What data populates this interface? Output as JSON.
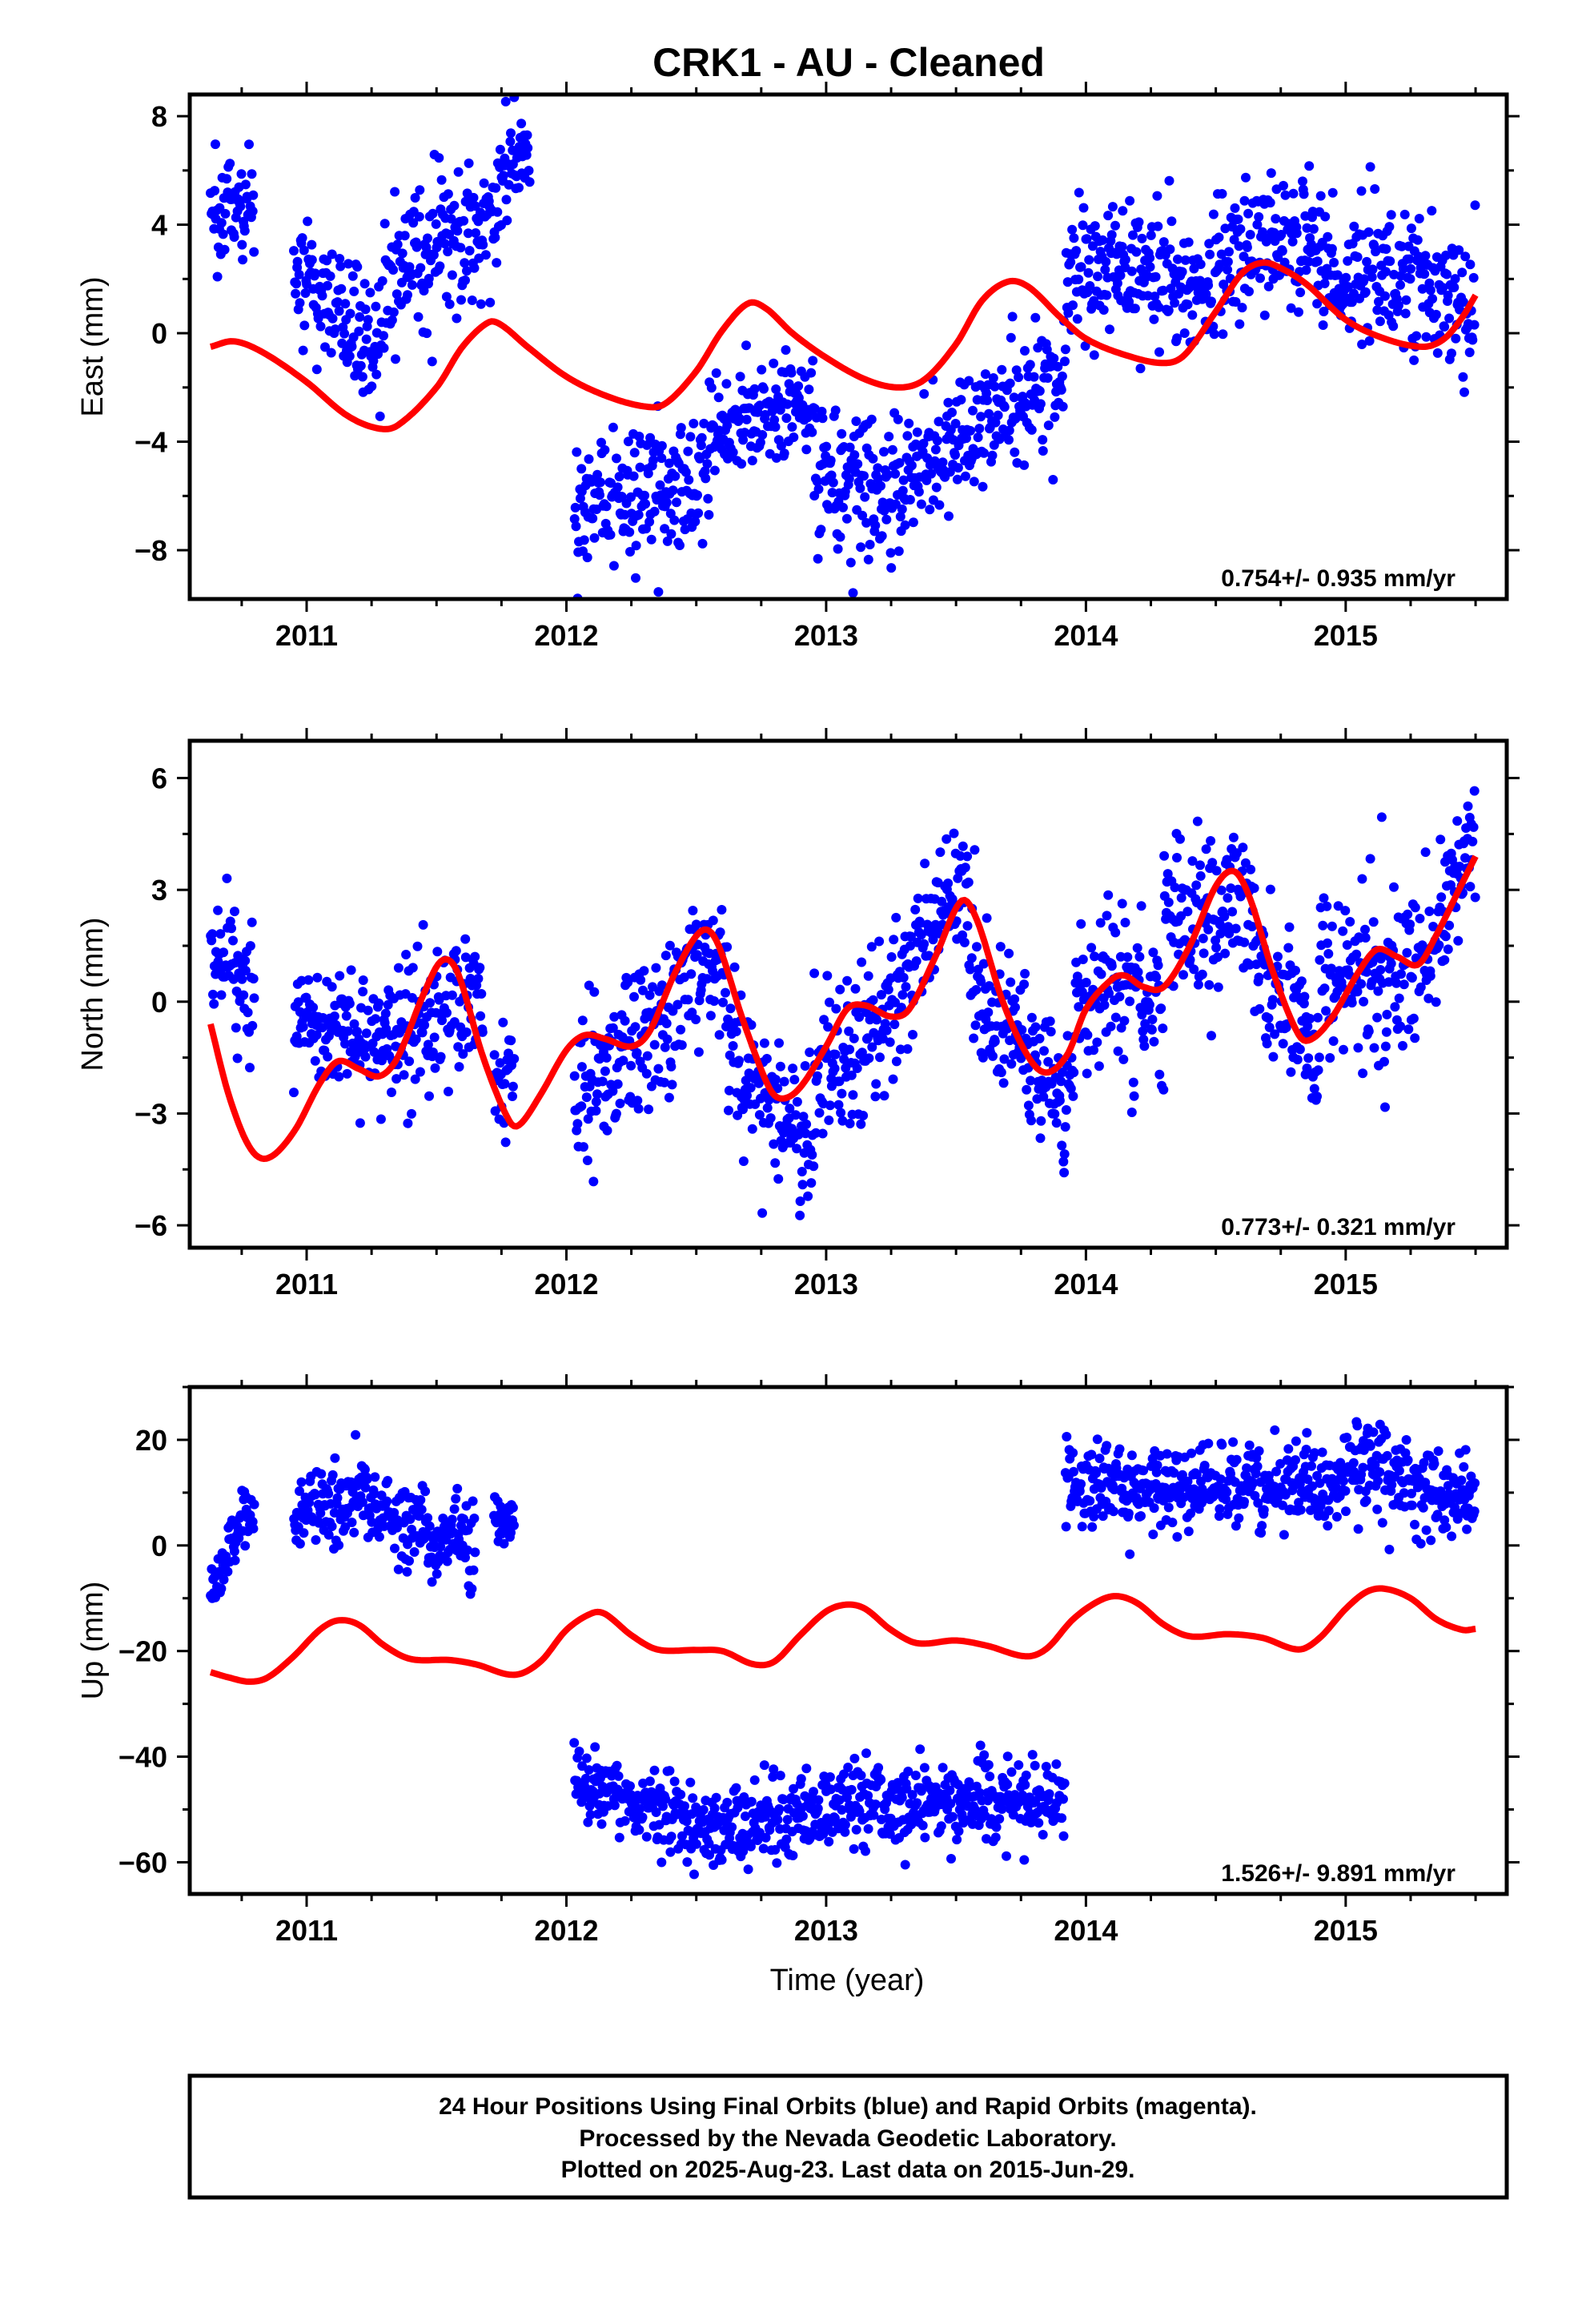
{
  "title": "CRK1  - AU - Cleaned",
  "x_label": "Time (year)",
  "footer_lines": [
    "24 Hour Positions Using Final Orbits (blue) and Rapid Orbits (magenta).",
    "Processed by the Nevada Geodetic Laboratory.",
    "Plotted on 2025-Aug-23. Last data on 2015-Jun-29."
  ],
  "colors": {
    "data_points": "#0000ff",
    "model_line": "#ff0000",
    "axes": "#000000"
  },
  "chart_data": [
    {
      "type": "scatter",
      "name": "east",
      "ylabel": "East (mm)",
      "xlim": [
        2010.55,
        2015.62
      ],
      "ylim": [
        -9.8,
        8.8
      ],
      "xticks": [
        2011,
        2012,
        2013,
        2014,
        2015
      ],
      "yticks": [
        -8,
        -4,
        0,
        4,
        8
      ],
      "rate_annotation": "0.754+/- 0.935 mm/yr",
      "segments": [
        {
          "x0": 2010.63,
          "x1": 2010.8,
          "y": [
            4.8,
            5.0
          ],
          "s": 1.0
        },
        {
          "x0": 2010.95,
          "x1": 2011.3,
          "y": [
            2.5,
            -0.6
          ],
          "s": 1.3
        },
        {
          "x0": 2011.3,
          "x1": 2011.78,
          "y": [
            1.8,
            4.8
          ],
          "s": 1.3
        },
        {
          "x0": 2011.78,
          "x1": 2011.86,
          "y": [
            6.5,
            6.5
          ],
          "s": 0.8
        },
        {
          "x0": 2012.03,
          "x1": 2012.55,
          "y": [
            -6.4,
            -5.3
          ],
          "s": 1.2
        },
        {
          "x0": 2012.55,
          "x1": 2012.95,
          "y": [
            -3.6,
            -2.3
          ],
          "s": 1.0
        },
        {
          "x0": 2012.95,
          "x1": 2013.3,
          "y": [
            -5.0,
            -6.0
          ],
          "s": 1.3
        },
        {
          "x0": 2013.3,
          "x1": 2013.92,
          "y": [
            -5.2,
            -2.0
          ],
          "s": 1.2
        },
        {
          "x0": 2013.92,
          "x1": 2014.5,
          "y": [
            2.6,
            1.6
          ],
          "s": 1.3
        },
        {
          "x0": 2014.5,
          "x1": 2014.9,
          "y": [
            2.9,
            3.6
          ],
          "s": 1.3
        },
        {
          "x0": 2014.9,
          "x1": 2015.5,
          "y": [
            2.5,
            1.2
          ],
          "s": 1.3
        }
      ],
      "model_knots": [
        [
          2010.63,
          -0.5
        ],
        [
          2010.72,
          -0.3
        ],
        [
          2010.83,
          -0.7
        ],
        [
          2011.0,
          -1.8
        ],
        [
          2011.15,
          -3.0
        ],
        [
          2011.27,
          -3.5
        ],
        [
          2011.35,
          -3.4
        ],
        [
          2011.5,
          -2.0
        ],
        [
          2011.6,
          -0.5
        ],
        [
          2011.7,
          0.4
        ],
        [
          2011.75,
          0.3
        ],
        [
          2011.85,
          -0.5
        ],
        [
          2012.0,
          -1.6
        ],
        [
          2012.15,
          -2.3
        ],
        [
          2012.3,
          -2.7
        ],
        [
          2012.38,
          -2.6
        ],
        [
          2012.5,
          -1.4
        ],
        [
          2012.6,
          0.1
        ],
        [
          2012.7,
          1.1
        ],
        [
          2012.77,
          0.9
        ],
        [
          2012.87,
          0.0
        ],
        [
          2013.0,
          -0.9
        ],
        [
          2013.15,
          -1.7
        ],
        [
          2013.28,
          -2.0
        ],
        [
          2013.38,
          -1.7
        ],
        [
          2013.5,
          -0.4
        ],
        [
          2013.6,
          1.2
        ],
        [
          2013.7,
          1.9
        ],
        [
          2013.78,
          1.7
        ],
        [
          2013.9,
          0.6
        ],
        [
          2014.0,
          -0.2
        ],
        [
          2014.15,
          -0.8
        ],
        [
          2014.3,
          -1.1
        ],
        [
          2014.38,
          -0.8
        ],
        [
          2014.5,
          0.8
        ],
        [
          2014.6,
          2.2
        ],
        [
          2014.68,
          2.6
        ],
        [
          2014.75,
          2.4
        ],
        [
          2014.85,
          1.8
        ],
        [
          2015.0,
          0.5
        ],
        [
          2015.15,
          -0.2
        ],
        [
          2015.3,
          -0.5
        ],
        [
          2015.38,
          -0.2
        ],
        [
          2015.45,
          0.6
        ],
        [
          2015.5,
          1.4
        ]
      ]
    },
    {
      "type": "scatter",
      "name": "north",
      "ylabel": "North (mm)",
      "xlim": [
        2010.55,
        2015.62
      ],
      "ylim": [
        -6.6,
        7.0
      ],
      "xticks": [
        2011,
        2012,
        2013,
        2014,
        2015
      ],
      "yticks": [
        -6,
        -3,
        0,
        3,
        6
      ],
      "rate_annotation": "0.773+/- 0.321 mm/yr",
      "segments": [
        {
          "x0": 2010.63,
          "x1": 2010.8,
          "y": [
            1.5,
            0.2
          ],
          "s": 0.9
        },
        {
          "x0": 2010.95,
          "x1": 2011.3,
          "y": [
            -0.9,
            -0.8
          ],
          "s": 0.9
        },
        {
          "x0": 2011.3,
          "x1": 2011.68,
          "y": [
            -0.5,
            0.3
          ],
          "s": 1.0
        },
        {
          "x0": 2011.72,
          "x1": 2011.8,
          "y": [
            -1.8,
            -1.8
          ],
          "s": 0.7
        },
        {
          "x0": 2012.03,
          "x1": 2012.45,
          "y": [
            -2.2,
            -0.2
          ],
          "s": 1.1
        },
        {
          "x0": 2012.45,
          "x1": 2012.62,
          "y": [
            1.0,
            0.6
          ],
          "s": 1.1
        },
        {
          "x0": 2012.62,
          "x1": 2012.95,
          "y": [
            -1.5,
            -4.2
          ],
          "s": 1.0
        },
        {
          "x0": 2012.95,
          "x1": 2013.3,
          "y": [
            -2.0,
            0.0
          ],
          "s": 1.1
        },
        {
          "x0": 2013.3,
          "x1": 2013.55,
          "y": [
            1.0,
            3.5
          ],
          "s": 1.0
        },
        {
          "x0": 2013.55,
          "x1": 2013.95,
          "y": [
            0.5,
            -2.8
          ],
          "s": 1.0
        },
        {
          "x0": 2013.95,
          "x1": 2014.3,
          "y": [
            0.5,
            0.0
          ],
          "s": 1.1
        },
        {
          "x0": 2014.3,
          "x1": 2014.65,
          "y": [
            1.8,
            3.0
          ],
          "s": 1.0
        },
        {
          "x0": 2014.65,
          "x1": 2014.9,
          "y": [
            1.0,
            -1.5
          ],
          "s": 1.0
        },
        {
          "x0": 2014.9,
          "x1": 2015.3,
          "y": [
            0.5,
            0.8
          ],
          "s": 1.2
        },
        {
          "x0": 2015.3,
          "x1": 2015.5,
          "y": [
            1.0,
            4.5
          ],
          "s": 1.1
        }
      ],
      "model_knots": [
        [
          2010.63,
          -0.6
        ],
        [
          2010.7,
          -2.5
        ],
        [
          2010.78,
          -3.9
        ],
        [
          2010.85,
          -4.2
        ],
        [
          2010.95,
          -3.5
        ],
        [
          2011.05,
          -2.2
        ],
        [
          2011.12,
          -1.6
        ],
        [
          2011.2,
          -1.8
        ],
        [
          2011.28,
          -2.0
        ],
        [
          2011.35,
          -1.5
        ],
        [
          2011.45,
          0.2
        ],
        [
          2011.52,
          1.1
        ],
        [
          2011.58,
          0.8
        ],
        [
          2011.68,
          -1.5
        ],
        [
          2011.78,
          -3.2
        ],
        [
          2011.82,
          -3.3
        ],
        [
          2011.9,
          -2.5
        ],
        [
          2012.0,
          -1.3
        ],
        [
          2012.07,
          -0.9
        ],
        [
          2012.15,
          -1.0
        ],
        [
          2012.25,
          -1.2
        ],
        [
          2012.32,
          -0.8
        ],
        [
          2012.42,
          0.8
        ],
        [
          2012.52,
          1.9
        ],
        [
          2012.58,
          1.6
        ],
        [
          2012.68,
          -0.5
        ],
        [
          2012.78,
          -2.3
        ],
        [
          2012.83,
          -2.6
        ],
        [
          2012.9,
          -2.3
        ],
        [
          2013.0,
          -1.2
        ],
        [
          2013.08,
          -0.2
        ],
        [
          2013.15,
          -0.1
        ],
        [
          2013.25,
          -0.4
        ],
        [
          2013.32,
          -0.2
        ],
        [
          2013.42,
          1.2
        ],
        [
          2013.52,
          2.7
        ],
        [
          2013.58,
          2.2
        ],
        [
          2013.68,
          0.0
        ],
        [
          2013.78,
          -1.5
        ],
        [
          2013.85,
          -1.9
        ],
        [
          2013.93,
          -1.4
        ],
        [
          2014.0,
          -0.2
        ],
        [
          2014.1,
          0.6
        ],
        [
          2014.15,
          0.7
        ],
        [
          2014.22,
          0.4
        ],
        [
          2014.3,
          0.4
        ],
        [
          2014.4,
          1.5
        ],
        [
          2014.5,
          3.1
        ],
        [
          2014.57,
          3.5
        ],
        [
          2014.63,
          2.8
        ],
        [
          2014.72,
          0.8
        ],
        [
          2014.82,
          -0.9
        ],
        [
          2014.87,
          -1.0
        ],
        [
          2014.95,
          -0.4
        ],
        [
          2015.05,
          0.8
        ],
        [
          2015.12,
          1.4
        ],
        [
          2015.2,
          1.2
        ],
        [
          2015.28,
          1.0
        ],
        [
          2015.35,
          1.8
        ],
        [
          2015.45,
          3.2
        ],
        [
          2015.5,
          3.9
        ]
      ]
    },
    {
      "type": "scatter",
      "name": "up",
      "ylabel": "Up (mm)",
      "xlim": [
        2010.55,
        2015.62
      ],
      "ylim": [
        -66,
        30
      ],
      "xticks": [
        2011,
        2012,
        2013,
        2014,
        2015
      ],
      "yticks": [
        -60,
        -40,
        -20,
        0,
        20
      ],
      "rate_annotation": "1.526+/- 9.891 mm/yr",
      "segments": [
        {
          "x0": 2010.63,
          "x1": 2010.8,
          "y": [
            -8.0,
            8.0
          ],
          "s": 3.5
        },
        {
          "x0": 2010.95,
          "x1": 2011.25,
          "y": [
            5.0,
            10.0
          ],
          "s": 3.5
        },
        {
          "x0": 2011.25,
          "x1": 2011.65,
          "y": [
            6.0,
            0.0
          ],
          "s": 4.0
        },
        {
          "x0": 2011.72,
          "x1": 2011.8,
          "y": [
            5.0,
            5.0
          ],
          "s": 3.0
        },
        {
          "x0": 2012.03,
          "x1": 2012.5,
          "y": [
            -45.0,
            -53.0
          ],
          "s": 3.5
        },
        {
          "x0": 2012.5,
          "x1": 2013.0,
          "y": [
            -55.0,
            -50.0
          ],
          "s": 4.0
        },
        {
          "x0": 2013.0,
          "x1": 2013.92,
          "y": [
            -49.0,
            -48.0
          ],
          "s": 4.0
        },
        {
          "x0": 2013.92,
          "x1": 2014.5,
          "y": [
            12.0,
            10.0
          ],
          "s": 4.0
        },
        {
          "x0": 2014.5,
          "x1": 2015.0,
          "y": [
            10.0,
            12.0
          ],
          "s": 4.0
        },
        {
          "x0": 2015.0,
          "x1": 2015.5,
          "y": [
            15.0,
            8.0
          ],
          "s": 4.5
        }
      ],
      "model_knots": [
        [
          2010.63,
          -24.0
        ],
        [
          2010.7,
          -25.0
        ],
        [
          2010.78,
          -25.8
        ],
        [
          2010.85,
          -25.0
        ],
        [
          2010.95,
          -21.0
        ],
        [
          2011.05,
          -16.0
        ],
        [
          2011.12,
          -14.2
        ],
        [
          2011.2,
          -15.0
        ],
        [
          2011.3,
          -19.0
        ],
        [
          2011.4,
          -21.5
        ],
        [
          2011.55,
          -21.7
        ],
        [
          2011.65,
          -22.5
        ],
        [
          2011.8,
          -24.5
        ],
        [
          2011.9,
          -22.0
        ],
        [
          2012.0,
          -16.0
        ],
        [
          2012.1,
          -12.8
        ],
        [
          2012.15,
          -13.0
        ],
        [
          2012.25,
          -17.0
        ],
        [
          2012.35,
          -19.7
        ],
        [
          2012.5,
          -19.8
        ],
        [
          2012.6,
          -20.0
        ],
        [
          2012.72,
          -22.5
        ],
        [
          2012.8,
          -22.0
        ],
        [
          2012.9,
          -17.0
        ],
        [
          2013.0,
          -12.5
        ],
        [
          2013.08,
          -11.2
        ],
        [
          2013.15,
          -12.0
        ],
        [
          2013.25,
          -16.0
        ],
        [
          2013.35,
          -18.5
        ],
        [
          2013.5,
          -18.0
        ],
        [
          2013.62,
          -19.0
        ],
        [
          2013.77,
          -21.0
        ],
        [
          2013.85,
          -19.5
        ],
        [
          2013.95,
          -14.0
        ],
        [
          2014.05,
          -10.5
        ],
        [
          2014.12,
          -9.6
        ],
        [
          2014.2,
          -11.0
        ],
        [
          2014.3,
          -15.0
        ],
        [
          2014.4,
          -17.2
        ],
        [
          2014.55,
          -16.8
        ],
        [
          2014.68,
          -17.5
        ],
        [
          2014.82,
          -19.7
        ],
        [
          2014.9,
          -17.5
        ],
        [
          2015.0,
          -12.0
        ],
        [
          2015.08,
          -8.8
        ],
        [
          2015.15,
          -8.2
        ],
        [
          2015.25,
          -10.0
        ],
        [
          2015.35,
          -14.0
        ],
        [
          2015.45,
          -16.0
        ],
        [
          2015.5,
          -15.8
        ]
      ]
    }
  ]
}
